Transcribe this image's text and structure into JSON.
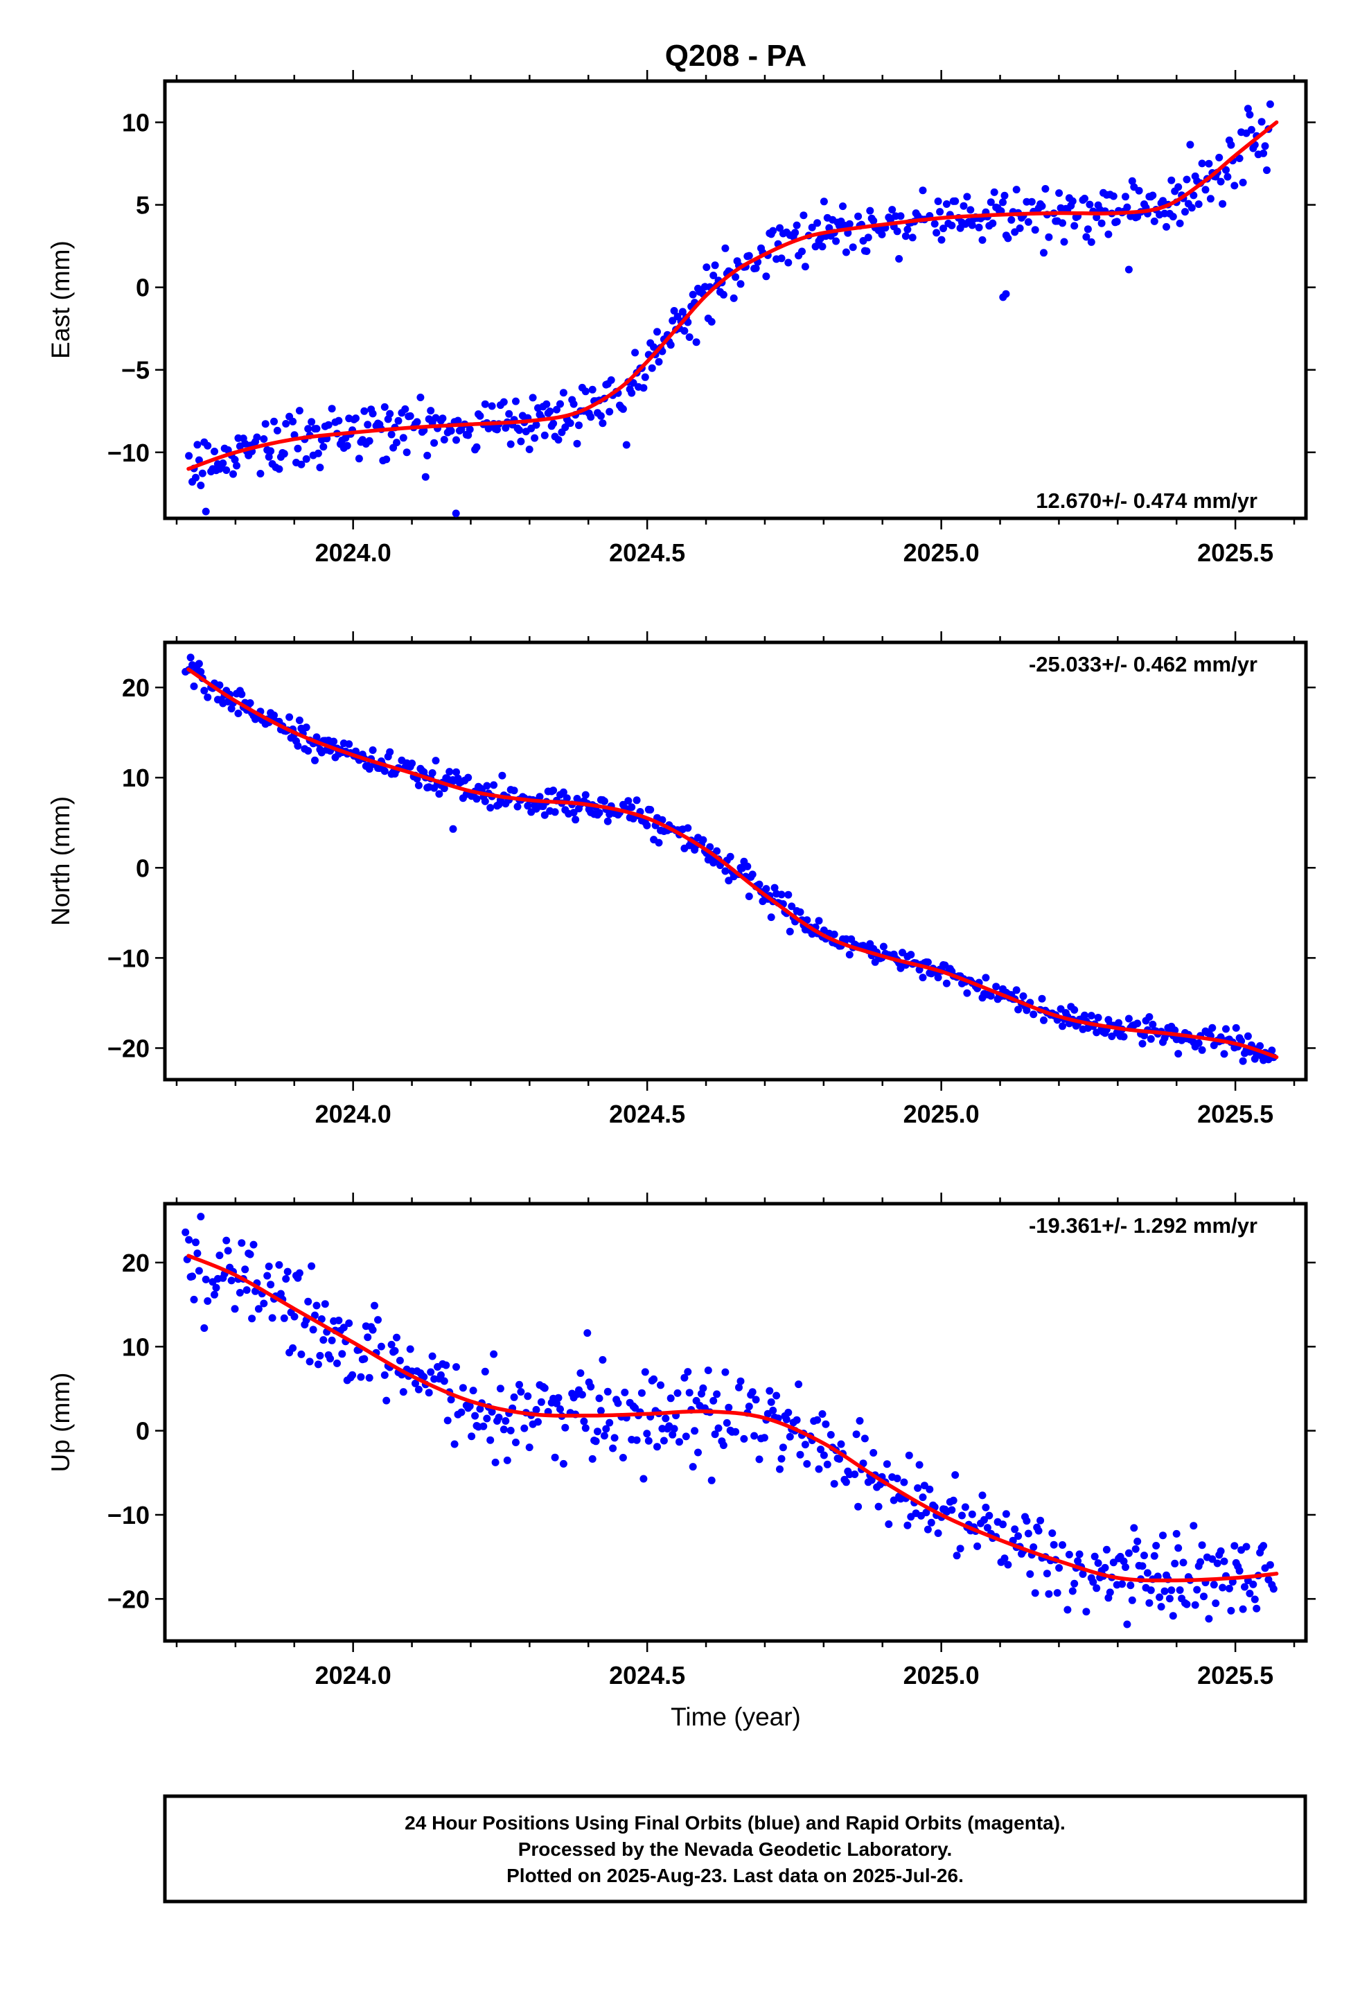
{
  "title": "Q208 - PA",
  "colors": {
    "points": "#0000ff",
    "fit": "#ff0000",
    "frame": "#000000"
  },
  "chart_data": [
    {
      "type": "scatter",
      "ylabel": "East (mm)",
      "xlim": [
        2023.68,
        2025.62
      ],
      "ylim": [
        -14,
        12.5
      ],
      "xticks": [
        2024.0,
        2024.5,
        2025.0,
        2025.5
      ],
      "xtick_labels": [
        "2024.0",
        "2024.5",
        "2025.0",
        "2025.5"
      ],
      "yticks": [
        -10,
        -5,
        0,
        5,
        10
      ],
      "ytick_labels": [
        "−10",
        "−5",
        "0",
        "5",
        "10"
      ],
      "rate_label": "12.670+/- 0.474 mm/yr",
      "rate_position": "bottom-right",
      "fit": {
        "x": [
          2023.72,
          2023.8,
          2023.9,
          2024.0,
          2024.1,
          2024.2,
          2024.3,
          2024.38,
          2024.45,
          2024.5,
          2024.55,
          2024.6,
          2024.65,
          2024.7,
          2024.75,
          2024.8,
          2024.9,
          2025.0,
          2025.1,
          2025.2,
          2025.3,
          2025.38,
          2025.45,
          2025.5,
          2025.57
        ],
        "y": [
          -11.0,
          -10.0,
          -9.2,
          -8.8,
          -8.5,
          -8.3,
          -8.1,
          -7.6,
          -6.2,
          -4.5,
          -2.5,
          -0.5,
          1.0,
          2.0,
          2.8,
          3.3,
          3.8,
          4.2,
          4.4,
          4.5,
          4.5,
          4.9,
          6.5,
          8.0,
          10.0
        ]
      },
      "points": {
        "a": [
          -13.25,
          0.5585,
          9.3286
        ],
        "b": [
          91.0596,
          -0.5087,
          115.2465
        ],
        "c": [
          -7.5689,
          79.2706,
          48.6032
        ],
        "noise": 1.0,
        "outliers": [
          [
            2024.175,
            -13.7
          ],
          [
            2025.105,
            -0.6
          ],
          [
            2025.11,
            -0.4
          ]
        ]
      }
    },
    {
      "type": "scatter",
      "ylabel": "North (mm)",
      "xlim": [
        2023.68,
        2025.62
      ],
      "ylim": [
        -23.5,
        25
      ],
      "xticks": [
        2024.0,
        2024.5,
        2025.0,
        2025.5
      ],
      "xtick_labels": [
        "2024.0",
        "2024.5",
        "2025.0",
        "2025.5"
      ],
      "yticks": [
        -20,
        -10,
        0,
        10,
        20
      ],
      "ytick_labels": [
        "−20",
        "−10",
        "0",
        "10",
        "20"
      ],
      "rate_label": "-25.033+/- 0.462 mm/yr",
      "rate_position": "top-right",
      "fit": {
        "x": [
          2023.72,
          2023.8,
          2023.9,
          2024.0,
          2024.1,
          2024.2,
          2024.3,
          2024.4,
          2024.5,
          2024.6,
          2024.7,
          2024.8,
          2024.9,
          2025.0,
          2025.1,
          2025.2,
          2025.3,
          2025.4,
          2025.5,
          2025.57
        ],
        "y": [
          22.0,
          18.5,
          15.0,
          12.5,
          10.5,
          8.5,
          7.5,
          7.0,
          5.5,
          2.0,
          -3.0,
          -7.5,
          -9.8,
          -11.5,
          -14.0,
          -16.5,
          -17.8,
          -18.5,
          -19.5,
          -21.0
        ]
      },
      "points": {
        "a": [
          -86.8,
          -42.1,
          -4.3
        ],
        "b": [
          102.7,
          42.0,
          114.0
        ],
        "c": [
          6.14,
          94.4,
          61.7
        ],
        "noise": 0.8,
        "outliers": [
          [
            2024.17,
            4.3
          ]
        ]
      }
    },
    {
      "type": "scatter",
      "ylabel": "Up (mm)",
      "xlabel": "Time (year)",
      "xlim": [
        2023.68,
        2025.62
      ],
      "ylim": [
        -25,
        27
      ],
      "xticks": [
        2024.0,
        2024.5,
        2025.0,
        2025.5
      ],
      "xtick_labels": [
        "2024.0",
        "2024.5",
        "2025.0",
        "2025.5"
      ],
      "yticks": [
        -20,
        -10,
        0,
        10,
        20
      ],
      "ytick_labels": [
        "−20",
        "−10",
        "0",
        "10",
        "20"
      ],
      "rate_label": "-19.361+/- 1.292 mm/yr",
      "rate_position": "top-right",
      "fit": {
        "x": [
          2023.72,
          2023.8,
          2023.9,
          2024.0,
          2024.1,
          2024.2,
          2024.3,
          2024.4,
          2024.5,
          2024.6,
          2024.7,
          2024.8,
          2024.9,
          2025.0,
          2025.1,
          2025.2,
          2025.3,
          2025.4,
          2025.5,
          2025.57
        ],
        "y": [
          20.8,
          18.5,
          14.5,
          10.5,
          6.5,
          3.5,
          2.0,
          1.8,
          2.0,
          2.3,
          1.5,
          -1.5,
          -6.0,
          -10.0,
          -13.0,
          -15.5,
          -17.5,
          -17.8,
          -17.5,
          -17.0
        ]
      },
      "points": {
        "a": [
          -33.2,
          14.8,
          -12.5
        ],
        "b": [
          22.8,
          66.4,
          85.5
        ],
        "c": [
          17.1,
          -58.6,
          -26.5
        ],
        "noise": 3.2,
        "outliers": []
      }
    }
  ],
  "footer": {
    "line1": "24 Hour Positions Using Final Orbits (blue) and Rapid Orbits (magenta).",
    "line2": "Processed by the Nevada Geodetic Laboratory.",
    "line3": "Plotted on 2025-Aug-23. Last data on 2025-Jul-26."
  }
}
